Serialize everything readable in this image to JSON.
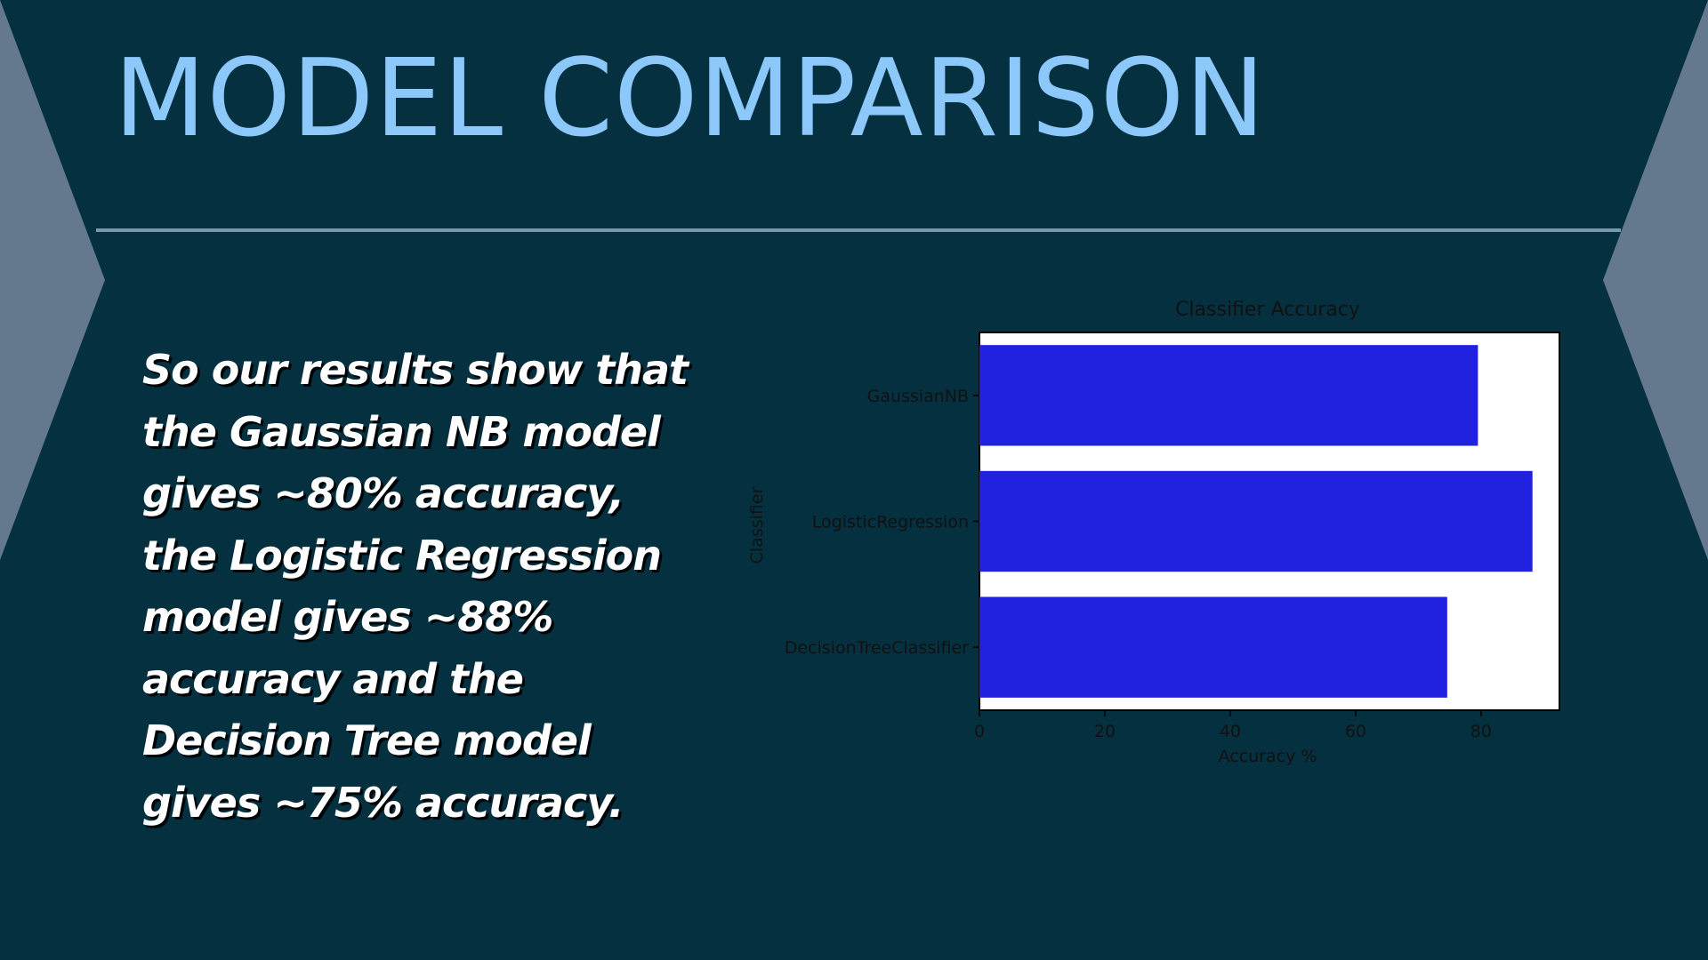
{
  "slide": {
    "title": "MODEL COMPARISON",
    "summary": "So our results show that the Gaussian NB model gives ~80% accuracy, the Logistic Regression model gives ~88% accuracy and the Decision Tree model gives ~75% accuracy."
  },
  "colors": {
    "background": "#04303f",
    "title": "#8dc8fb",
    "decoration": "#64798d",
    "divider": "#7b97ad",
    "bar": "#2121e0",
    "plot_background": "#ffffff"
  },
  "chart_data": {
    "type": "bar",
    "orientation": "horizontal",
    "title": "Classifier Accuracy",
    "xlabel": "Accuracy %",
    "ylabel": "Classifier",
    "categories": [
      "GaussianNB",
      "LogisticRegression",
      "DecisionTreeClassifier"
    ],
    "values": [
      79.5,
      88.2,
      74.6
    ],
    "xlim": [
      0,
      92.5
    ],
    "xticks": [
      0,
      20,
      40,
      60,
      80
    ],
    "grid": false,
    "legend": "none"
  }
}
